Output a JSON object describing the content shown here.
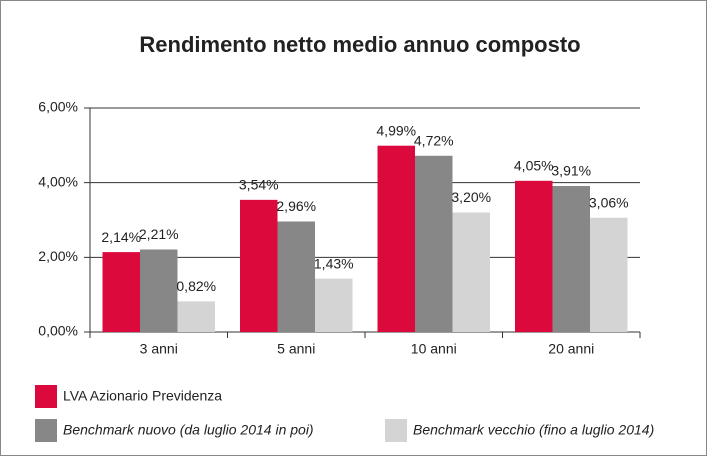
{
  "chart_data": {
    "type": "bar",
    "title": "Rendimento netto medio annuo composto",
    "categories": [
      "3 anni",
      "5 anni",
      "10 anni",
      "20 anni"
    ],
    "series": [
      {
        "name": "LVA Azionario Previdenza",
        "color": "#dc0a3c",
        "values": [
          2.14,
          3.54,
          4.99,
          4.05
        ],
        "value_labels": [
          "2,14%",
          "3,54%",
          "4,99%",
          "4,05%"
        ]
      },
      {
        "name": "Benchmark nuovo (da luglio 2014 in poi)",
        "color": "#878787",
        "values": [
          2.21,
          2.96,
          4.72,
          3.91
        ],
        "value_labels": [
          "2,21%",
          "2,96%",
          "4,72%",
          "3,91%"
        ]
      },
      {
        "name": "Benchmark vecchio (fino a luglio 2014)",
        "color": "#d4d4d4",
        "values": [
          0.82,
          1.43,
          3.2,
          3.06
        ],
        "value_labels": [
          "0,82%",
          "1,43%",
          "3,20%",
          "3,06%"
        ]
      }
    ],
    "ylim": [
      0,
      6
    ],
    "yticks": [
      {
        "value": 0,
        "label": "0,00%"
      },
      {
        "value": 2,
        "label": "2,00%"
      },
      {
        "value": 4,
        "label": "4,00%"
      },
      {
        "value": 6,
        "label": "6,00%"
      }
    ],
    "grid": true
  }
}
